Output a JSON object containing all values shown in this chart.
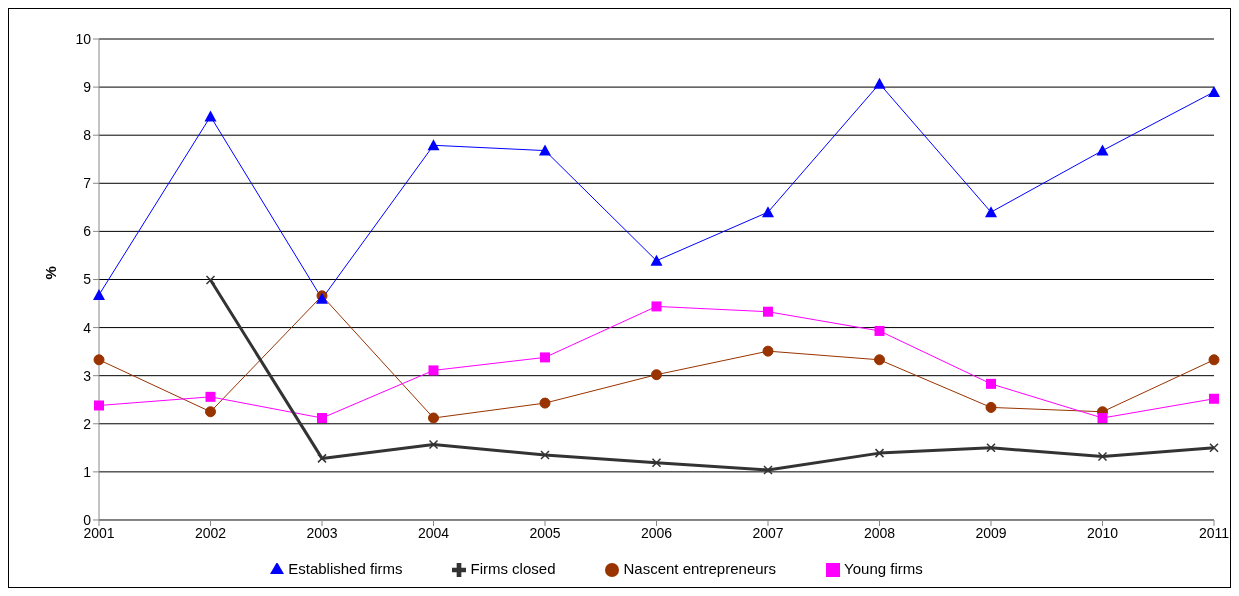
{
  "chart_data": {
    "type": "line",
    "ylabel": "%",
    "categories": [
      "2001",
      "2002",
      "2003",
      "2004",
      "2005",
      "2006",
      "2007",
      "2008",
      "2009",
      "2010",
      "2011"
    ],
    "ylim": [
      0,
      10
    ],
    "yticks": [
      0,
      1,
      2,
      3,
      4,
      5,
      6,
      7,
      8,
      9,
      10
    ],
    "grid": "y",
    "legend": "bottom",
    "line_style": "solid",
    "series": [
      {
        "name": "Nascent entrepreneurs",
        "color": "#993300",
        "marker": "circle",
        "values": [
          3.33,
          2.25,
          4.66,
          2.12,
          2.43,
          3.02,
          3.51,
          3.33,
          2.34,
          2.25,
          3.33
        ]
      },
      {
        "name": "Young firms",
        "color": "#ff00ff",
        "marker": "square",
        "values": [
          2.38,
          2.56,
          2.12,
          3.11,
          3.38,
          4.44,
          4.33,
          3.93,
          2.83,
          2.12,
          2.52
        ]
      },
      {
        "name": "Established firms",
        "color": "#0000ff",
        "marker": "triangle",
        "values": [
          4.68,
          8.39,
          4.6,
          7.79,
          7.68,
          5.39,
          6.4,
          9.07,
          6.4,
          7.68,
          8.9
        ]
      },
      {
        "name": "Firms closed",
        "color": "#333333",
        "marker": "cross",
        "values": [
          null,
          4.99,
          1.28,
          1.57,
          1.35,
          1.19,
          1.04,
          1.39,
          1.5,
          1.32,
          1.5
        ]
      }
    ]
  }
}
